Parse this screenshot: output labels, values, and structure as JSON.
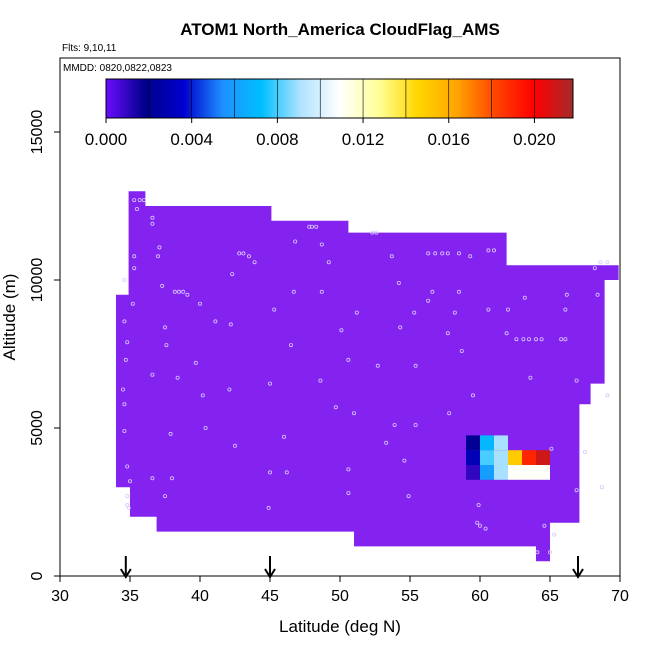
{
  "chart_data": {
    "type": "heatmap",
    "title": "ATOM1 North_America CloudFlag_AMS",
    "notes": [
      "Flts: 9,10,11",
      "MMDD: 0820,0822,0823"
    ],
    "xlabel": "Latitude (deg N)",
    "ylabel": "Altitude (m)",
    "xlim": [
      30,
      70
    ],
    "ylim": [
      0,
      17500
    ],
    "x_ticks": [
      "30",
      "35",
      "40",
      "45",
      "50",
      "55",
      "60",
      "65",
      "70"
    ],
    "y_ticks": [
      "0",
      "5000",
      "10000",
      "15000"
    ],
    "colorbar": {
      "range": [
        0,
        0.0218
      ],
      "ticks": [
        "0.000",
        "0.004",
        "0.008",
        "0.012",
        "0.016",
        "0.020"
      ],
      "tick_values": [
        0,
        0.004,
        0.008,
        0.012,
        0.016,
        0.02
      ],
      "stops": [
        "#6a0dff",
        "#00008b",
        "#0000cd",
        "#1e90ff",
        "#00bfff",
        "#b0e2ff",
        "#ffffff",
        "#ffff99",
        "#ffd700",
        "#ffa500",
        "#ff4500",
        "#ff0000",
        "#a52a2a"
      ]
    },
    "background_value": 0,
    "background_color": "#8422f0",
    "envelope": [
      [
        30,
        34.0
      ],
      [
        9500,
        34.0
      ],
      [
        9500,
        34.9
      ],
      [
        13000,
        34.9
      ],
      [
        13000,
        36.1
      ],
      [
        12500,
        36.1
      ],
      [
        12500,
        45.1
      ],
      [
        12000,
        45.1
      ],
      [
        12000,
        50.6
      ],
      [
        11600,
        50.6
      ],
      [
        11600,
        61.9
      ],
      [
        10500,
        61.9
      ],
      [
        10500,
        69.9
      ],
      [
        10000,
        69.9
      ],
      [
        10000,
        68.9
      ],
      [
        6500,
        68.9
      ],
      [
        6500,
        67.9
      ],
      [
        5800,
        67.9
      ],
      [
        5800,
        67.1
      ],
      [
        1800,
        67.1
      ],
      [
        1800,
        65.0
      ],
      [
        500,
        65.0
      ],
      [
        500,
        64.0
      ],
      [
        1000,
        64.0
      ],
      [
        1000,
        51.0
      ],
      [
        1500,
        51.0
      ],
      [
        1500,
        36.9
      ],
      [
        2000,
        36.9
      ],
      [
        2000,
        35.0
      ],
      [
        3000,
        35.0
      ],
      [
        3000,
        34.0
      ]
    ],
    "cells": [
      {
        "x": 59.5,
        "y": 4500,
        "value": 0.002
      },
      {
        "x": 60.5,
        "y": 4500,
        "value": 0.007
      },
      {
        "x": 61.5,
        "y": 4500,
        "value": 0.009
      },
      {
        "x": 59.5,
        "y": 4000,
        "value": 0.003
      },
      {
        "x": 60.5,
        "y": 4000,
        "value": 0.008
      },
      {
        "x": 61.5,
        "y": 4000,
        "value": 0.009
      },
      {
        "x": 62.5,
        "y": 4000,
        "value": 0.015
      },
      {
        "x": 63.5,
        "y": 4000,
        "value": 0.019
      },
      {
        "x": 64.5,
        "y": 4000,
        "value": 0.021
      },
      {
        "x": 59.5,
        "y": 3500,
        "value": 0.001
      },
      {
        "x": 60.5,
        "y": 3500,
        "value": 0.006
      },
      {
        "x": 61.5,
        "y": 3500,
        "value": 0.009
      },
      {
        "x": 62.5,
        "y": 3500,
        "value": 0.011
      },
      {
        "x": 63.5,
        "y": 3500,
        "value": 0.011
      },
      {
        "x": 64.5,
        "y": 3500,
        "value": 0.011
      }
    ],
    "cell_size": {
      "x": 1,
      "y": 500
    },
    "profile_markers": [
      34.7,
      45.0,
      67.0
    ],
    "sample_points": [
      [
        35.3,
        12700
      ],
      [
        35.7,
        12700
      ],
      [
        36.0,
        12700
      ],
      [
        35.5,
        12400
      ],
      [
        36.6,
        12100
      ],
      [
        36.6,
        11900
      ],
      [
        48.0,
        11800
      ],
      [
        48.3,
        11800
      ],
      [
        47.8,
        11800
      ],
      [
        52.3,
        11600
      ],
      [
        52.6,
        11600
      ],
      [
        46.8,
        11300
      ],
      [
        48.7,
        11200
      ],
      [
        42.8,
        10900
      ],
      [
        43.1,
        10900
      ],
      [
        43.5,
        10800
      ],
      [
        37.0,
        10800
      ],
      [
        35.3,
        10800
      ],
      [
        37.1,
        11100
      ],
      [
        43.9,
        10600
      ],
      [
        49.2,
        10600
      ],
      [
        53.7,
        10800
      ],
      [
        56.3,
        10900
      ],
      [
        56.8,
        10900
      ],
      [
        57.3,
        10900
      ],
      [
        57.7,
        10900
      ],
      [
        58.5,
        10900
      ],
      [
        59.3,
        10800
      ],
      [
        60.6,
        11000
      ],
      [
        61.0,
        11000
      ],
      [
        68.6,
        10600
      ],
      [
        69.1,
        10600
      ],
      [
        68.2,
        10400
      ],
      [
        42.3,
        10200
      ],
      [
        35.3,
        10400
      ],
      [
        34.6,
        10000
      ],
      [
        54.2,
        9900
      ],
      [
        37.3,
        9800
      ],
      [
        38.2,
        9600
      ],
      [
        38.5,
        9600
      ],
      [
        38.8,
        9600
      ],
      [
        39.1,
        9500
      ],
      [
        46.7,
        9600
      ],
      [
        48.7,
        9600
      ],
      [
        56.6,
        9600
      ],
      [
        58.5,
        9600
      ],
      [
        63.2,
        9400
      ],
      [
        66.2,
        9500
      ],
      [
        68.4,
        9500
      ],
      [
        56.3,
        9300
      ],
      [
        35.2,
        9200
      ],
      [
        40.0,
        9200
      ],
      [
        60.6,
        9000
      ],
      [
        62.0,
        9000
      ],
      [
        58.2,
        8900
      ],
      [
        45.3,
        9000
      ],
      [
        51.2,
        8900
      ],
      [
        55.3,
        8900
      ],
      [
        66.1,
        9000
      ],
      [
        34.6,
        8600
      ],
      [
        41.1,
        8600
      ],
      [
        42.2,
        8500
      ],
      [
        37.5,
        8400
      ],
      [
        50.1,
        8300
      ],
      [
        54.3,
        8400
      ],
      [
        57.7,
        8200
      ],
      [
        61.9,
        8200
      ],
      [
        62.6,
        8000
      ],
      [
        63.1,
        8000
      ],
      [
        63.5,
        8000
      ],
      [
        64.0,
        8000
      ],
      [
        64.4,
        8000
      ],
      [
        65.8,
        8000
      ],
      [
        66.1,
        8000
      ],
      [
        34.8,
        7900
      ],
      [
        37.6,
        7800
      ],
      [
        46.5,
        7800
      ],
      [
        58.7,
        7600
      ],
      [
        34.7,
        7300
      ],
      [
        52.7,
        7100
      ],
      [
        55.4,
        7100
      ],
      [
        50.6,
        7300
      ],
      [
        39.7,
        7200
      ],
      [
        36.6,
        6800
      ],
      [
        38.4,
        6700
      ],
      [
        48.6,
        6600
      ],
      [
        63.6,
        6700
      ],
      [
        66.9,
        6600
      ],
      [
        34.5,
        6300
      ],
      [
        42.1,
        6300
      ],
      [
        45.0,
        6500
      ],
      [
        59.5,
        6100
      ],
      [
        40.2,
        6100
      ],
      [
        69.1,
        6100
      ],
      [
        34.6,
        5800
      ],
      [
        49.7,
        5700
      ],
      [
        51.0,
        5500
      ],
      [
        57.8,
        5500
      ],
      [
        53.9,
        5100
      ],
      [
        55.4,
        5100
      ],
      [
        40.4,
        5000
      ],
      [
        34.6,
        4900
      ],
      [
        37.9,
        4800
      ],
      [
        46.0,
        4700
      ],
      [
        53.3,
        4500
      ],
      [
        42.5,
        4400
      ],
      [
        65.1,
        4300
      ],
      [
        67.5,
        4200
      ],
      [
        54.6,
        3900
      ],
      [
        34.8,
        3700
      ],
      [
        50.6,
        3600
      ],
      [
        45.0,
        3500
      ],
      [
        38.0,
        3300
      ],
      [
        46.2,
        3500
      ],
      [
        35.0,
        3200
      ],
      [
        36.6,
        3300
      ],
      [
        34.8,
        2700
      ],
      [
        34.8,
        2400
      ],
      [
        37.5,
        2700
      ],
      [
        50.6,
        2800
      ],
      [
        54.9,
        2700
      ],
      [
        59.9,
        2400
      ],
      [
        66.9,
        2900
      ],
      [
        68.7,
        3000
      ],
      [
        34.9,
        2300
      ],
      [
        44.9,
        2300
      ],
      [
        59.8,
        1800
      ],
      [
        60.0,
        1700
      ],
      [
        60.4,
        1600
      ],
      [
        64.6,
        1700
      ],
      [
        65.3,
        1400
      ],
      [
        64.1,
        800
      ],
      [
        65.0,
        800
      ]
    ]
  }
}
